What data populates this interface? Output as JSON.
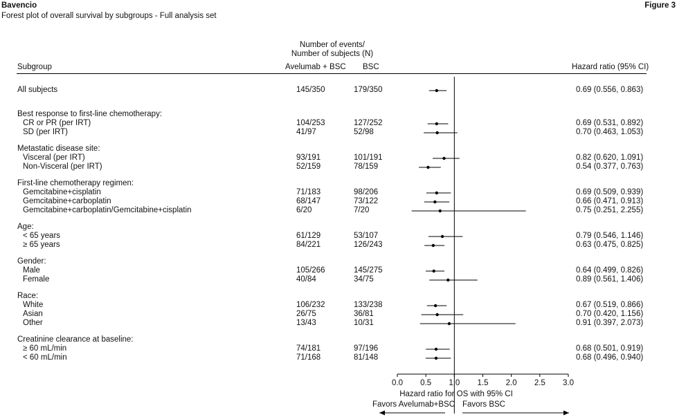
{
  "header": {
    "product": "Bavencio",
    "figure_label": "Figure 3",
    "title": "Forest plot of overall survival by subgroups - Full analysis set"
  },
  "columns": {
    "events_header_line1": "Number of events/",
    "events_header_line2": "Number of subjects (N)",
    "subgroup": "Subgroup",
    "arm1": "Avelumab + BSC",
    "arm2": "BSC",
    "hr": "Hazard ratio (95% CI)"
  },
  "chart_data": {
    "type": "forest",
    "xlabel": "Hazard ratio for OS with 95% CI",
    "xlim": [
      0.0,
      3.0
    ],
    "xticks": [
      "0.0",
      "0.5",
      "1.0",
      "1.5",
      "2.0",
      "2.5",
      "3.0"
    ],
    "reference_line": 1.0,
    "favors_left": "Favors Avelumab+BSC",
    "favors_right": "Favors BSC",
    "rows": [
      {
        "label": "All subjects",
        "arm1": "145/350",
        "arm2": "179/350",
        "hr": 0.69,
        "lo": 0.556,
        "hi": 0.863,
        "hr_text": "0.69 (0.556, 0.863)"
      },
      {
        "group": "Best response to first-line chemotherapy:"
      },
      {
        "label": "CR or PR (per IRT)",
        "arm1": "104/253",
        "arm2": "127/252",
        "hr": 0.69,
        "lo": 0.531,
        "hi": 0.892,
        "hr_text": "0.69 (0.531, 0.892)"
      },
      {
        "label": "SD (per IRT)",
        "arm1": "41/97",
        "arm2": "52/98",
        "hr": 0.7,
        "lo": 0.463,
        "hi": 1.053,
        "hr_text": "0.70 (0.463, 1.053)"
      },
      {
        "group": "Metastatic disease site:"
      },
      {
        "label": "Visceral (per IRT)",
        "arm1": "93/191",
        "arm2": "101/191",
        "hr": 0.82,
        "lo": 0.62,
        "hi": 1.091,
        "hr_text": "0.82 (0.620, 1.091)"
      },
      {
        "label": "Non-Visceral (per IRT)",
        "arm1": "52/159",
        "arm2": "78/159",
        "hr": 0.54,
        "lo": 0.377,
        "hi": 0.763,
        "hr_text": "0.54 (0.377, 0.763)"
      },
      {
        "group": "First-line chemotherapy regimen:"
      },
      {
        "label": "Gemcitabine+cisplatin",
        "arm1": "71/183",
        "arm2": "98/206",
        "hr": 0.69,
        "lo": 0.509,
        "hi": 0.939,
        "hr_text": "0.69 (0.509, 0.939)"
      },
      {
        "label": "Gemcitabine+carboplatin",
        "arm1": "68/147",
        "arm2": "73/122",
        "hr": 0.66,
        "lo": 0.471,
        "hi": 0.913,
        "hr_text": "0.66 (0.471, 0.913)"
      },
      {
        "label": "Gemcitabine+carboplatin/Gemcitabine+cisplatin",
        "arm1": "6/20",
        "arm2": "7/20",
        "hr": 0.75,
        "lo": 0.251,
        "hi": 2.255,
        "hr_text": "0.75 (0.251, 2.255)"
      },
      {
        "group": "Age:"
      },
      {
        "label": "< 65 years",
        "arm1": "61/129",
        "arm2": "53/107",
        "hr": 0.79,
        "lo": 0.546,
        "hi": 1.146,
        "hr_text": "0.79 (0.546, 1.146)"
      },
      {
        "label": "≥ 65 years",
        "arm1": "84/221",
        "arm2": "126/243",
        "hr": 0.63,
        "lo": 0.475,
        "hi": 0.825,
        "hr_text": "0.63 (0.475, 0.825)"
      },
      {
        "group": "Gender:"
      },
      {
        "label": "Male",
        "arm1": "105/266",
        "arm2": "145/275",
        "hr": 0.64,
        "lo": 0.499,
        "hi": 0.826,
        "hr_text": "0.64 (0.499, 0.826)"
      },
      {
        "label": "Female",
        "arm1": "40/84",
        "arm2": "34/75",
        "hr": 0.89,
        "lo": 0.561,
        "hi": 1.406,
        "hr_text": "0.89 (0.561, 1.406)"
      },
      {
        "group": "Race:"
      },
      {
        "label": "White",
        "arm1": "106/232",
        "arm2": "133/238",
        "hr": 0.67,
        "lo": 0.519,
        "hi": 0.866,
        "hr_text": "0.67 (0.519, 0.866)"
      },
      {
        "label": "Asian",
        "arm1": "26/75",
        "arm2": "36/81",
        "hr": 0.7,
        "lo": 0.42,
        "hi": 1.156,
        "hr_text": "0.70 (0.420, 1.156)"
      },
      {
        "label": "Other",
        "arm1": "13/43",
        "arm2": "10/31",
        "hr": 0.91,
        "lo": 0.397,
        "hi": 2.073,
        "hr_text": "0.91 (0.397, 2.073)"
      },
      {
        "group": "Creatinine clearance at baseline:"
      },
      {
        "label": "≥ 60 mL/min",
        "arm1": "74/181",
        "arm2": "97/196",
        "hr": 0.68,
        "lo": 0.501,
        "hi": 0.919,
        "hr_text": "0.68 (0.501, 0.919)"
      },
      {
        "label": "< 60 mL/min",
        "arm1": "71/168",
        "arm2": "81/148",
        "hr": 0.68,
        "lo": 0.496,
        "hi": 0.94,
        "hr_text": "0.68 (0.496, 0.940)"
      }
    ]
  }
}
